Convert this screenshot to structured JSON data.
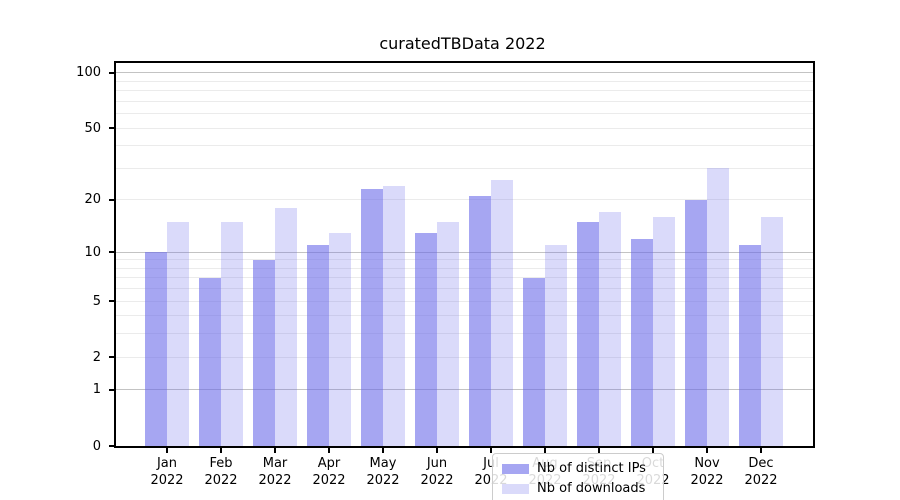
{
  "title": "curatedTBData 2022",
  "colors": {
    "bar_distinct_ips": "rgba(102,102,233,0.58)",
    "bar_downloads": "rgba(102,102,233,0.24)",
    "grid_major": "#c3c3c3",
    "grid_minor": "#ebebeb",
    "spine": "#000000",
    "text": "#000000",
    "legend_border": "#cccccc"
  },
  "chart_data": {
    "type": "bar",
    "title": "curatedTBData 2022",
    "categories": [
      "Jan",
      "Feb",
      "Mar",
      "Apr",
      "May",
      "Jun",
      "Jul",
      "Aug",
      "Sep",
      "Oct",
      "Nov",
      "Dec"
    ],
    "category_year": "2022",
    "series": [
      {
        "name": "Nb of distinct IPs",
        "values": [
          10,
          7,
          9,
          11,
          23,
          13,
          21,
          7,
          15,
          12,
          20,
          11
        ]
      },
      {
        "name": "Nb of downloads",
        "values": [
          15,
          15,
          18,
          13,
          24,
          15,
          26,
          11,
          17,
          16,
          30,
          16
        ]
      }
    ],
    "xlabel": "",
    "ylabel": "",
    "yscale": "log1p",
    "ytick_labels": [
      "0",
      "1",
      "2",
      "5",
      "10",
      "20",
      "50",
      "100"
    ],
    "ytick_values": [
      0,
      1,
      2,
      5,
      10,
      20,
      50,
      100
    ],
    "ygrid_major_values": [
      1,
      10,
      100
    ],
    "ygrid_minor_values": [
      2,
      3,
      4,
      5,
      6,
      7,
      8,
      9,
      20,
      30,
      40,
      50,
      60,
      70,
      80,
      90
    ],
    "ylim": [
      0,
      113
    ],
    "grid": true,
    "legend_position": "lower center"
  }
}
